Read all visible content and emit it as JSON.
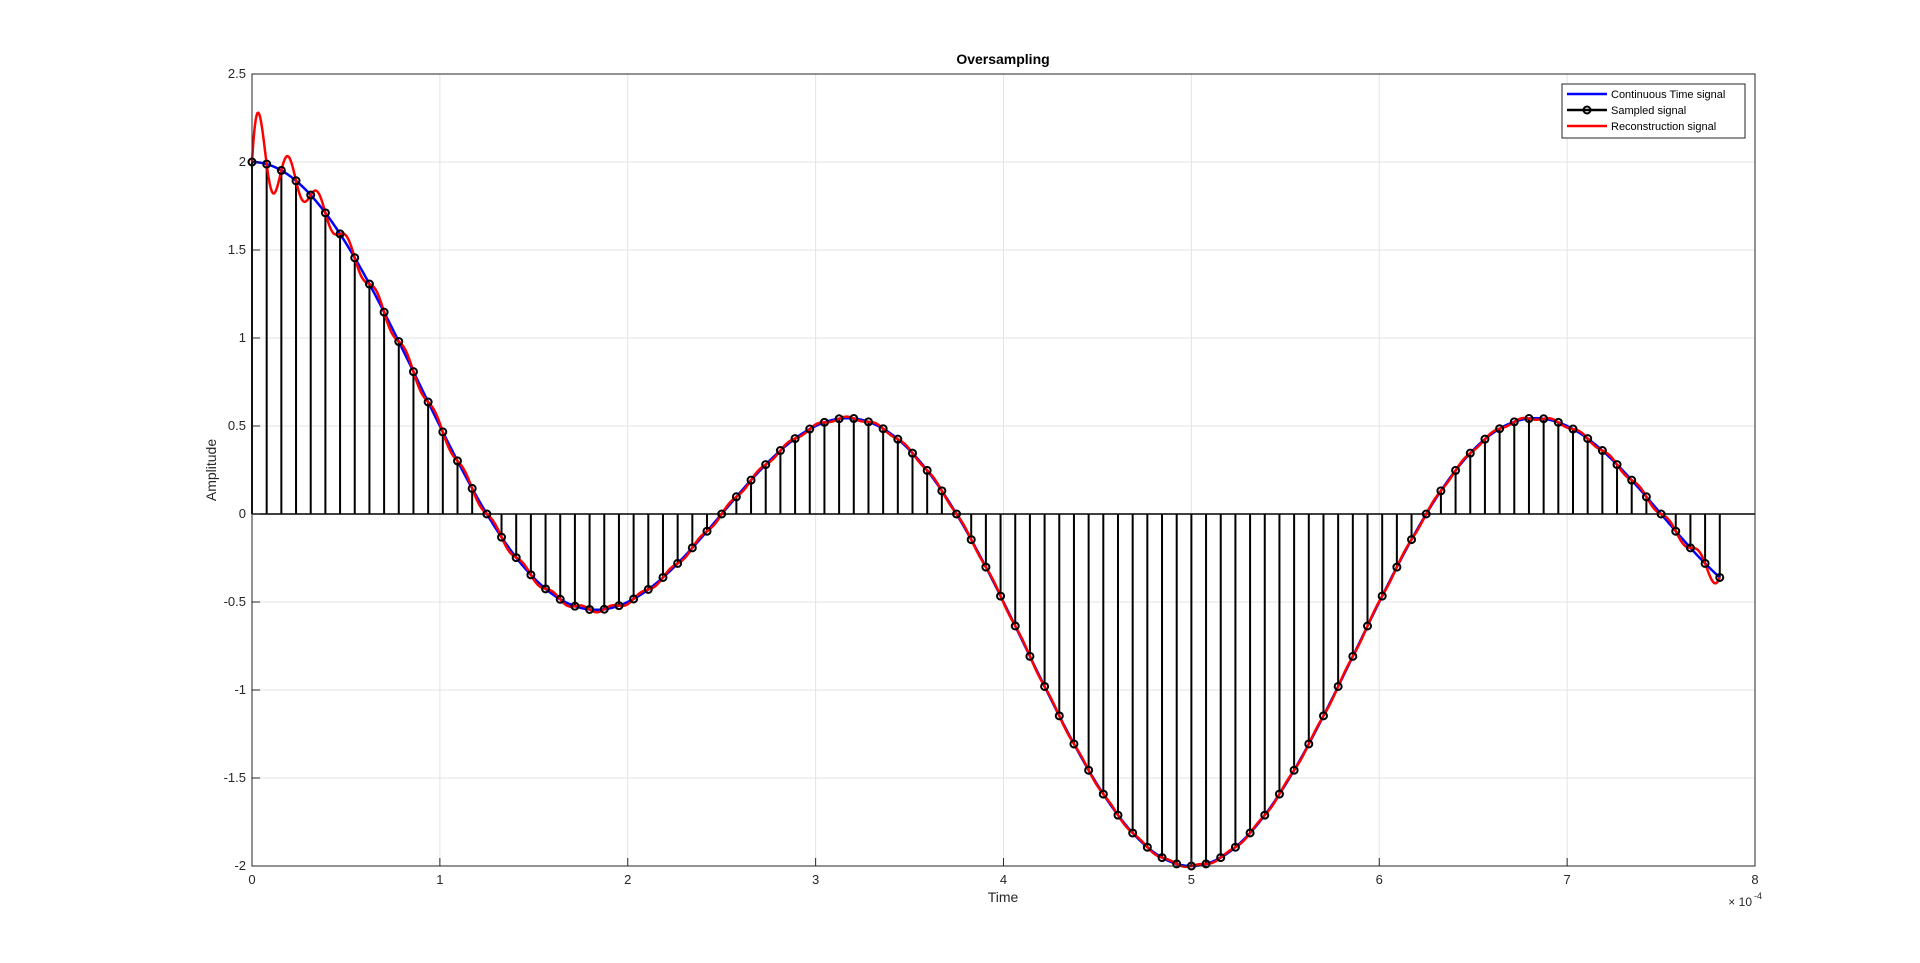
{
  "chart_data": {
    "type": "line",
    "title": "Oversampling",
    "xlabel": "Time",
    "ylabel": "Amplitude",
    "x_exponent_label": "× 10",
    "x_exponent_power": "-4",
    "xlim": [
      0,
      8
    ],
    "ylim": [
      -2,
      2.5
    ],
    "x_ticks": [
      0,
      1,
      2,
      3,
      4,
      5,
      6,
      7,
      8
    ],
    "x_tick_labels": [
      "0",
      "1",
      "2",
      "3",
      "4",
      "5",
      "6",
      "7",
      "8"
    ],
    "y_ticks": [
      -2,
      -1.5,
      -1,
      -0.5,
      0,
      0.5,
      1,
      1.5,
      2,
      2.5
    ],
    "y_tick_labels": [
      "-2",
      "-1.5",
      "-1",
      "-0.5",
      "0",
      "0.5",
      "1",
      "1.5",
      "2",
      "2.5"
    ],
    "grid": true,
    "legend_position": "top-right",
    "sample_period": 0.078125,
    "sample_count": 101,
    "series": [
      {
        "name": "Continuous Time signal",
        "color": "#0000ff",
        "style": "line",
        "formula": "cos(2*pi*1000*t) + cos(2*pi*3000*t)",
        "x_unit_scale": 0.0001
      },
      {
        "name": "Sampled signal",
        "color": "#000000",
        "style": "stem"
      },
      {
        "name": "Reconstruction signal",
        "color": "#ff0000",
        "style": "line",
        "formula": "sinc interpolation of samples"
      }
    ]
  }
}
